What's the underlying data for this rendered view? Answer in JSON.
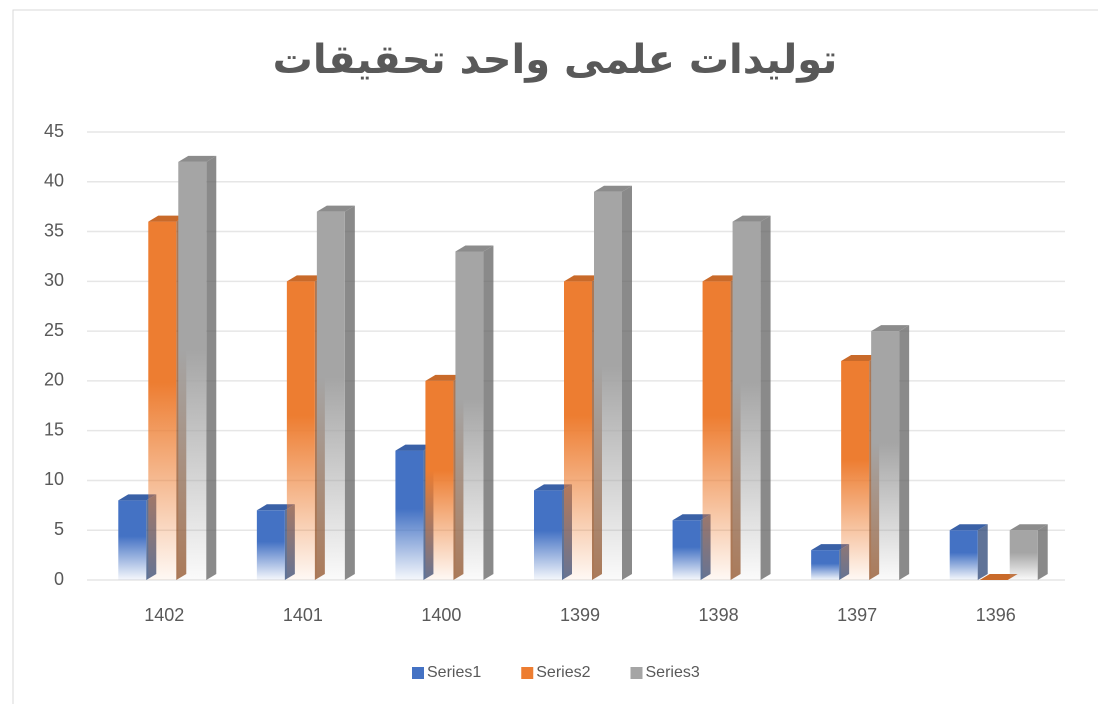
{
  "chart_data": {
    "type": "bar3d",
    "title": "تولیدات علمی واحد تحقیقات",
    "categories": [
      "1402",
      "1401",
      "1400",
      "1399",
      "1398",
      "1397",
      "1396"
    ],
    "series": [
      {
        "name": "Series1",
        "color": "#4472c4",
        "values": [
          8,
          7,
          13,
          9,
          6,
          3,
          5
        ]
      },
      {
        "name": "Series2",
        "color": "#ed7d31",
        "values": [
          36,
          30,
          20,
          30,
          30,
          22,
          0
        ]
      },
      {
        "name": "Series3",
        "color": "#a5a5a5",
        "values": [
          42,
          37,
          33,
          39,
          36,
          25,
          5
        ]
      }
    ],
    "ylim": [
      0,
      45
    ],
    "yticks": [
      0,
      5,
      10,
      15,
      20,
      25,
      30,
      35,
      40,
      45
    ],
    "grid": true,
    "legend": "bottom"
  }
}
